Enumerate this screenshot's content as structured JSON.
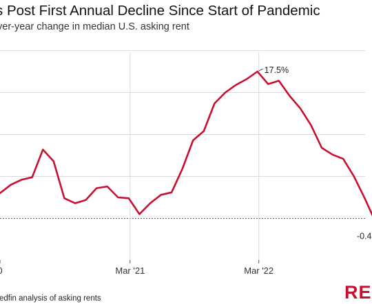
{
  "title": "s Post First Annual Decline Since Start of Pandemic",
  "subtitle": "ver-year change in median U.S. asking rent",
  "source": "edfin analysis of asking rents",
  "logo_text": "RE",
  "colors": {
    "line": "#c8102e",
    "grid": "#d9d9d9",
    "zero": "#555555"
  },
  "chart_data": {
    "type": "line",
    "title": "",
    "xlabel": "",
    "ylabel": "",
    "x_tick_labels": [
      "0",
      "Mar '21",
      "Mar '22"
    ],
    "ylim": [
      -5.5,
      22
    ],
    "y_gridlines": [
      0,
      5,
      10,
      15,
      20
    ],
    "zero_line_dashed": true,
    "grid": true,
    "series": [
      {
        "values": [
          3.0,
          4.0,
          4.6,
          4.9,
          8.2,
          6.8,
          2.4,
          1.8,
          2.2,
          3.6,
          3.8,
          2.5,
          2.4,
          0.5,
          1.8,
          2.8,
          3.1,
          5.9,
          9.3,
          10.4,
          13.7,
          15.0,
          15.9,
          16.6,
          17.5,
          16.0,
          16.4,
          14.6,
          13.1,
          11.1,
          8.4,
          7.6,
          7.1,
          5.0,
          2.4,
          -0.4
        ],
        "point_labels": {
          "24": "17.5%",
          "35": "-0.4"
        }
      }
    ]
  }
}
